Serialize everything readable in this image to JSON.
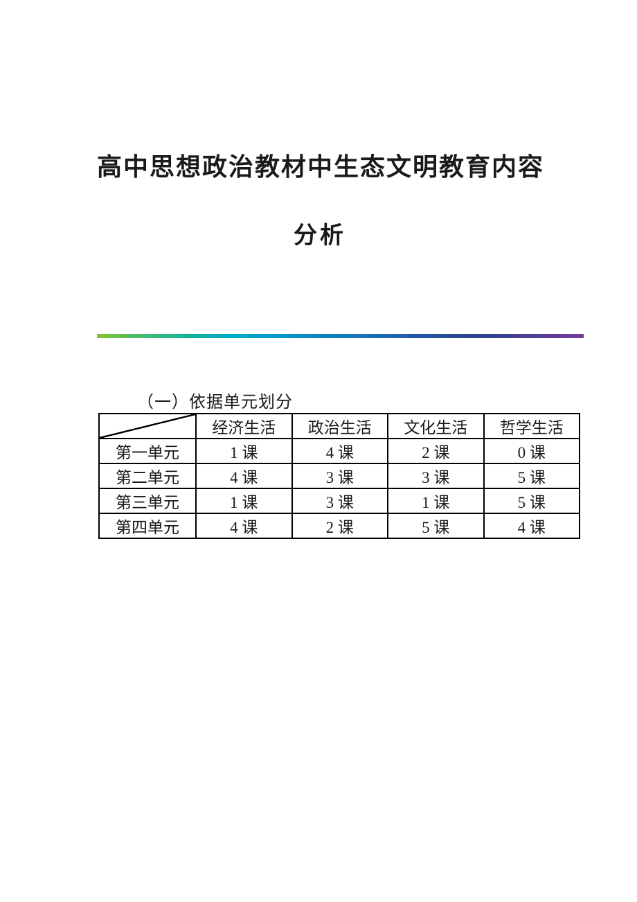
{
  "title": {
    "line1": "高中思想政治教材中生态文明教育内容",
    "line2": "分析"
  },
  "divider": {
    "gradient_colors": [
      "#86c232",
      "#18b59b",
      "#00adc6",
      "#0d7fc0",
      "#2b4493",
      "#753f9c"
    ]
  },
  "section": {
    "heading": "（一）依据单元划分"
  },
  "table": {
    "corner_label": "",
    "columns": [
      "经济生活",
      "政治生活",
      "文化生活",
      "哲学生活"
    ],
    "rows": [
      {
        "label": "第一单元",
        "values": [
          "1 课",
          "4 课",
          "2 课",
          "0 课"
        ]
      },
      {
        "label": "第二单元",
        "values": [
          "4 课",
          "3 课",
          "3 课",
          "5 课"
        ]
      },
      {
        "label": "第三单元",
        "values": [
          "1 课",
          "3 课",
          "1 课",
          "5 课"
        ]
      },
      {
        "label": "第四单元",
        "values": [
          "4 课",
          "2 课",
          "5 课",
          "4 课"
        ]
      }
    ]
  }
}
